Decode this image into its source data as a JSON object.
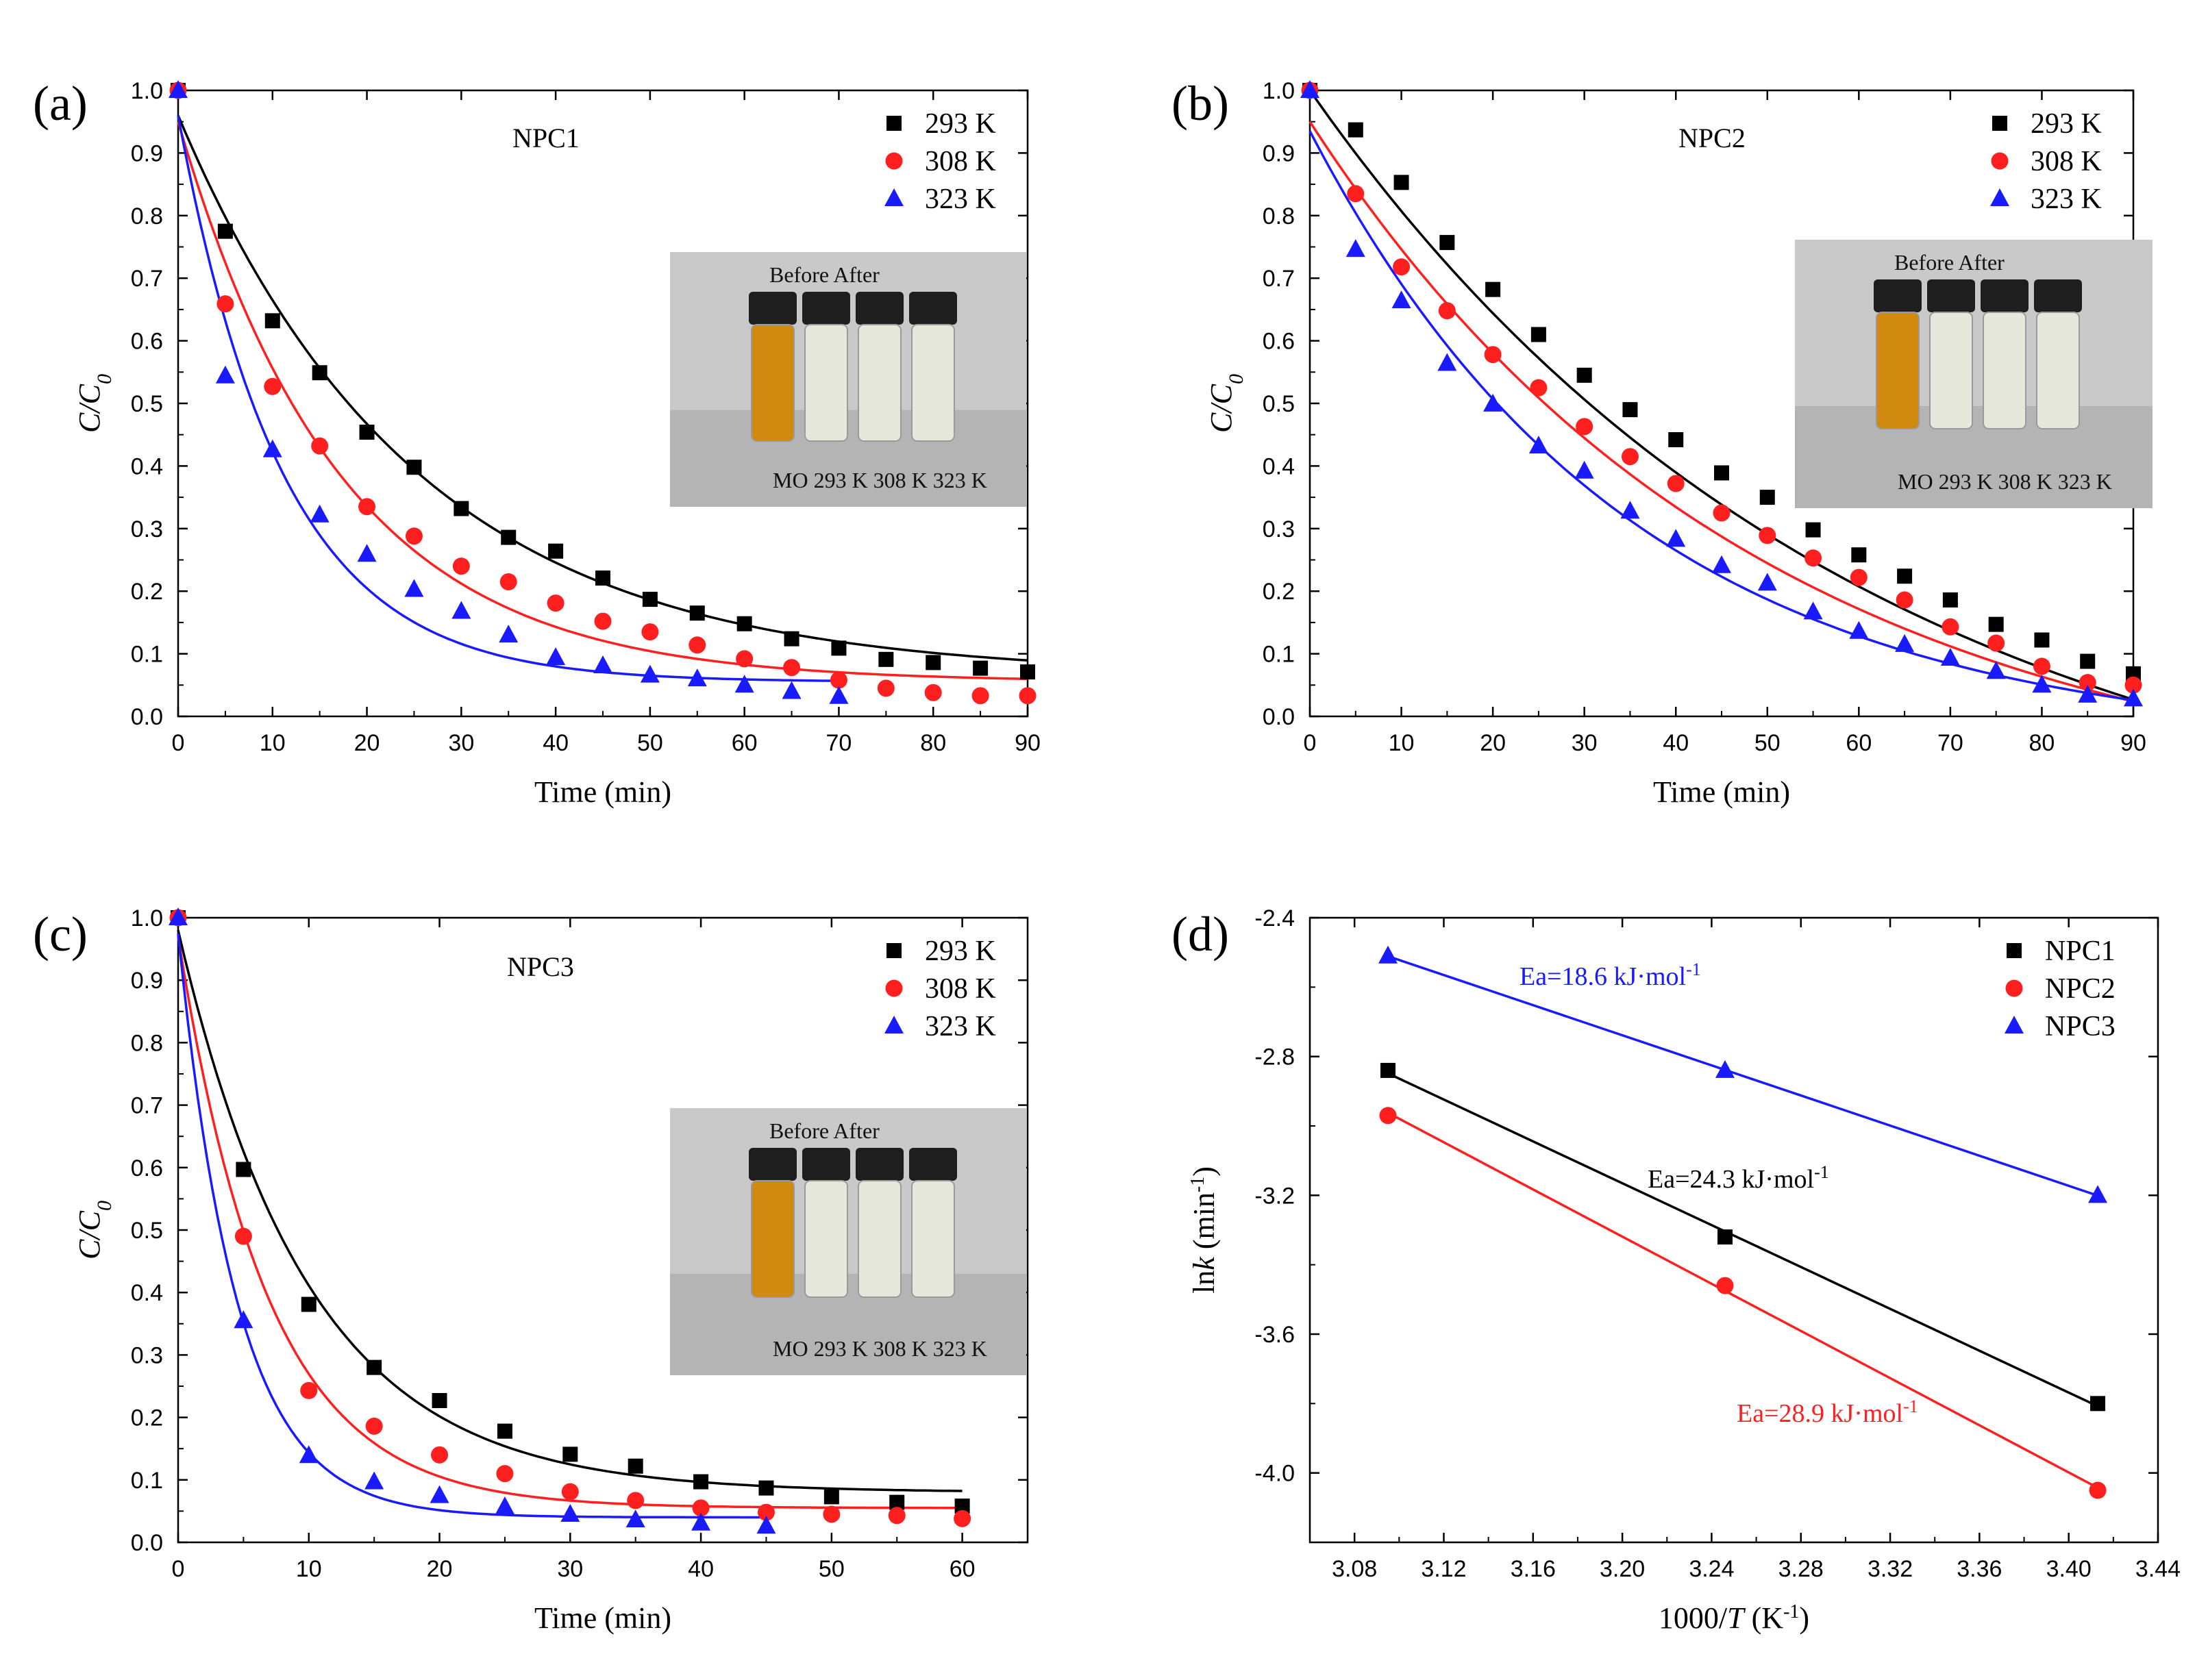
{
  "colors": {
    "k293": "#000000",
    "k308": "#ff1f1f",
    "k323": "#1a1aff",
    "NPC1": "#000000",
    "NPC2": "#ff1f1f",
    "NPC3": "#1a1aff"
  },
  "chart_data": [
    {
      "id": "a",
      "type": "scatter",
      "panel_label": "(a)",
      "title": "NPC1",
      "xlabel": "Time (min)",
      "ylabel": "C/C0",
      "xlim": [
        0,
        90
      ],
      "ylim": [
        0,
        1.0
      ],
      "xticks": [
        "0",
        "10",
        "20",
        "30",
        "40",
        "50",
        "60",
        "70",
        "80",
        "90"
      ],
      "yticks": [
        "0.0",
        "0.1",
        "0.2",
        "0.3",
        "0.4",
        "0.5",
        "0.6",
        "0.7",
        "0.8",
        "0.9",
        "1.0"
      ],
      "legend": [
        "293 K",
        "308 K",
        "323 K"
      ],
      "inset": {
        "top": "Before  After",
        "bottom": "MO    293 K 308 K 323 K"
      },
      "series": [
        {
          "name": "293 K",
          "marker": "square",
          "color_key": "k293",
          "x": [
            0,
            5,
            10,
            15,
            20,
            25,
            30,
            35,
            40,
            45,
            50,
            55,
            60,
            65,
            70,
            75,
            80,
            85,
            90
          ],
          "y": [
            1.0,
            0.775,
            0.632,
            0.549,
            0.454,
            0.398,
            0.332,
            0.286,
            0.264,
            0.221,
            0.187,
            0.165,
            0.148,
            0.124,
            0.109,
            0.091,
            0.086,
            0.077,
            0.071
          ],
          "fit": {
            "c": 0.065,
            "A": 0.895,
            "k": 0.04
          }
        },
        {
          "name": "308 K",
          "marker": "circle",
          "color_key": "k308",
          "x": [
            0,
            5,
            10,
            15,
            20,
            25,
            30,
            35,
            40,
            45,
            50,
            55,
            60,
            65,
            70,
            75,
            80,
            85,
            90
          ],
          "y": [
            1.0,
            0.659,
            0.527,
            0.432,
            0.335,
            0.288,
            0.24,
            0.215,
            0.181,
            0.152,
            0.135,
            0.114,
            0.092,
            0.078,
            0.058,
            0.045,
            0.038,
            0.033,
            0.033
          ],
          "fit": {
            "c": 0.055,
            "A": 0.895,
            "k": 0.058
          }
        },
        {
          "name": "323 K",
          "marker": "triangle",
          "color_key": "k323",
          "x": [
            0,
            5,
            10,
            15,
            20,
            25,
            30,
            35,
            40,
            45,
            50,
            55,
            60,
            65,
            70
          ],
          "y": [
            1.0,
            0.544,
            0.426,
            0.322,
            0.259,
            0.203,
            0.168,
            0.13,
            0.094,
            0.081,
            0.066,
            0.06,
            0.05,
            0.04,
            0.032
          ],
          "fit": {
            "c": 0.055,
            "A": 0.905,
            "k": 0.09
          }
        }
      ]
    },
    {
      "id": "b",
      "type": "scatter",
      "panel_label": "(b)",
      "title": "NPC2",
      "xlabel": "Time (min)",
      "ylabel": "C/C0",
      "xlim": [
        0,
        90
      ],
      "ylim": [
        0,
        1.0
      ],
      "xticks": [
        "0",
        "10",
        "20",
        "30",
        "40",
        "50",
        "60",
        "70",
        "80",
        "90"
      ],
      "yticks": [
        "0.0",
        "0.1",
        "0.2",
        "0.3",
        "0.4",
        "0.5",
        "0.6",
        "0.7",
        "0.8",
        "0.9",
        "1.0"
      ],
      "legend": [
        "293 K",
        "308 K",
        "323 K"
      ],
      "inset": {
        "top": "Before  After",
        "bottom": "MO    293 K 308 K 323 K"
      },
      "series": [
        {
          "name": "293 K",
          "marker": "square",
          "color_key": "k293",
          "x": [
            0,
            5,
            10,
            15,
            20,
            25,
            30,
            35,
            40,
            45,
            50,
            55,
            60,
            65,
            70,
            75,
            80,
            85,
            90
          ],
          "y": [
            1.0,
            0.937,
            0.853,
            0.757,
            0.682,
            0.61,
            0.545,
            0.49,
            0.442,
            0.389,
            0.35,
            0.298,
            0.258,
            0.224,
            0.186,
            0.147,
            0.122,
            0.088,
            0.068
          ],
          "fit": {
            "c": -0.25,
            "A": 1.25,
            "k": 0.01675
          }
        },
        {
          "name": "308 K",
          "marker": "circle",
          "color_key": "k308",
          "x": [
            0,
            5,
            10,
            15,
            20,
            25,
            30,
            35,
            40,
            45,
            50,
            55,
            60,
            65,
            70,
            75,
            80,
            85,
            90
          ],
          "y": [
            1.0,
            0.835,
            0.718,
            0.648,
            0.578,
            0.525,
            0.463,
            0.415,
            0.372,
            0.325,
            0.289,
            0.253,
            0.222,
            0.186,
            0.143,
            0.117,
            0.08,
            0.054,
            0.05
          ],
          "fit": {
            "c": -0.15,
            "A": 1.1,
            "k": 0.0205
          }
        },
        {
          "name": "323 K",
          "marker": "triangle",
          "color_key": "k323",
          "x": [
            0,
            5,
            10,
            15,
            20,
            25,
            30,
            35,
            40,
            45,
            50,
            55,
            60,
            65,
            70,
            75,
            80,
            85,
            90
          ],
          "y": [
            1.0,
            0.746,
            0.664,
            0.564,
            0.499,
            0.432,
            0.392,
            0.328,
            0.283,
            0.241,
            0.213,
            0.167,
            0.136,
            0.115,
            0.093,
            0.072,
            0.05,
            0.034,
            0.028
          ],
          "fit": {
            "c": -0.05,
            "A": 0.985,
            "k": 0.0285
          }
        }
      ]
    },
    {
      "id": "c",
      "type": "scatter",
      "panel_label": "(c)",
      "title": "NPC3",
      "xlabel": "Time (min)",
      "ylabel": "C/C0",
      "xlim": [
        0,
        65
      ],
      "ylim": [
        0,
        1.0
      ],
      "xticks": [
        "0",
        "10",
        "20",
        "30",
        "40",
        "50",
        "60"
      ],
      "yticks": [
        "0.0",
        "0.1",
        "0.2",
        "0.3",
        "0.4",
        "0.5",
        "0.6",
        "0.7",
        "0.8",
        "0.9",
        "1.0"
      ],
      "legend": [
        "293 K",
        "308 K",
        "323 K"
      ],
      "inset": {
        "top": "Before  After",
        "bottom": "MO    293 K 308 K 323 K"
      },
      "series": [
        {
          "name": "293 K",
          "marker": "square",
          "color_key": "k293",
          "x": [
            0,
            5,
            10,
            15,
            20,
            25,
            30,
            35,
            40,
            45,
            50,
            55,
            60
          ],
          "y": [
            1.0,
            0.597,
            0.381,
            0.28,
            0.227,
            0.178,
            0.141,
            0.122,
            0.097,
            0.087,
            0.073,
            0.064,
            0.058
          ],
          "fit": {
            "c": 0.08,
            "A": 0.9,
            "k": 0.1
          }
        },
        {
          "name": "308 K",
          "marker": "circle",
          "color_key": "k308",
          "x": [
            0,
            5,
            10,
            15,
            20,
            25,
            30,
            35,
            40,
            45,
            50,
            55,
            60
          ],
          "y": [
            1.0,
            0.49,
            0.243,
            0.186,
            0.14,
            0.11,
            0.081,
            0.067,
            0.055,
            0.048,
            0.045,
            0.043,
            0.038
          ],
          "fit": {
            "c": 0.055,
            "A": 0.915,
            "k": 0.145
          }
        },
        {
          "name": "323 K",
          "marker": "triangle",
          "color_key": "k323",
          "x": [
            0,
            5,
            10,
            15,
            20,
            25,
            30,
            35,
            40,
            45
          ],
          "y": [
            1.0,
            0.355,
            0.139,
            0.097,
            0.075,
            0.057,
            0.045,
            0.036,
            0.031,
            0.026
          ],
          "fit": {
            "c": 0.04,
            "A": 0.935,
            "k": 0.22
          }
        }
      ]
    },
    {
      "id": "d",
      "type": "scatter",
      "panel_label": "(d)",
      "xlabel": "1000/T (K-1)",
      "ylabel": "lnk (min-1)",
      "xlim": [
        3.06,
        3.44
      ],
      "ylim": [
        -4.2,
        -2.4
      ],
      "xticks": [
        "3.08",
        "3.12",
        "3.16",
        "3.20",
        "3.24",
        "3.28",
        "3.32",
        "3.36",
        "3.40",
        "3.44"
      ],
      "yticks": [
        "-2.4",
        "-2.8",
        "-3.2",
        "-3.6",
        "-4.0"
      ],
      "legend": [
        "NPC1",
        "NPC2",
        "NPC3"
      ],
      "annotations": [
        "Ea=18.6 kJ·mol-1",
        "Ea=24.3 kJ·mol-1",
        "Ea=28.9 kJ·mol-1"
      ],
      "series": [
        {
          "name": "NPC1",
          "marker": "square",
          "color_key": "NPC1",
          "x": [
            3.095,
            3.246,
            3.413
          ],
          "y": [
            -2.84,
            -3.32,
            -3.8
          ]
        },
        {
          "name": "NPC2",
          "marker": "circle",
          "color_key": "NPC2",
          "x": [
            3.095,
            3.246,
            3.413
          ],
          "y": [
            -2.97,
            -3.46,
            -4.05
          ]
        },
        {
          "name": "NPC3",
          "marker": "triangle",
          "color_key": "NPC3",
          "x": [
            3.095,
            3.246,
            3.413
          ],
          "y": [
            -2.51,
            -2.84,
            -3.2
          ]
        }
      ]
    }
  ]
}
